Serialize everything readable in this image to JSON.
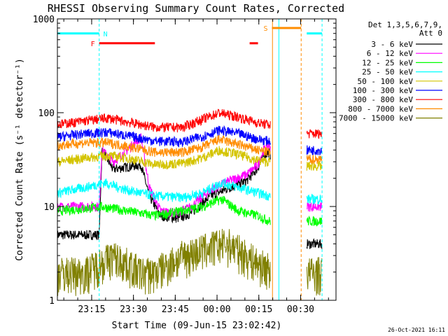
{
  "chart_data": {
    "type": "line",
    "title": "RHESSI Observing Summary Count Rates, Corrected",
    "xlabel": "Start Time (09-Jun-15 23:02:42)",
    "ylabel": "Corrected Count Rate (s⁻¹ detector⁻¹)",
    "yscale": "log",
    "ylim": [
      1,
      1000
    ],
    "xlim_minutes": [
      0,
      100
    ],
    "x_ticks": [
      {
        "t": 12.3,
        "label": "23:15"
      },
      {
        "t": 27.3,
        "label": "23:30"
      },
      {
        "t": 42.3,
        "label": "23:45"
      },
      {
        "t": 57.3,
        "label": "00:00"
      },
      {
        "t": 72.3,
        "label": "00:15"
      },
      {
        "t": 87.3,
        "label": "00:30"
      }
    ],
    "y_ticks": [
      {
        "v": 1,
        "label": "1"
      },
      {
        "v": 10,
        "label": "10"
      },
      {
        "v": 100,
        "label": "100"
      },
      {
        "v": 1000,
        "label": "1000"
      }
    ],
    "legend_header": [
      "Det 1,3,5,6,7,9,",
      "Att 0"
    ],
    "data_gaps_minutes": [
      [
        76.5,
        89.5
      ]
    ],
    "series": [
      {
        "name": "3 - 6 keV",
        "color": "#000000",
        "points": [
          [
            0,
            5
          ],
          [
            15,
            5
          ],
          [
            16,
            40
          ],
          [
            20,
            25
          ],
          [
            30,
            28
          ],
          [
            33,
            13
          ],
          [
            37,
            8
          ],
          [
            43,
            7.5
          ],
          [
            48,
            8.5
          ],
          [
            55,
            13
          ],
          [
            62,
            16
          ],
          [
            68,
            19
          ],
          [
            72,
            26
          ],
          [
            74,
            35
          ],
          [
            76,
            38
          ],
          [
            89.5,
            4
          ],
          [
            95,
            4
          ]
        ]
      },
      {
        "name": "6 - 12 keV",
        "color": "#ff00ff",
        "points": [
          [
            0,
            10
          ],
          [
            15,
            10
          ],
          [
            16,
            40
          ],
          [
            20,
            30
          ],
          [
            25,
            40
          ],
          [
            30,
            55
          ],
          [
            33,
            16
          ],
          [
            37,
            9
          ],
          [
            43,
            8.5
          ],
          [
            48,
            10
          ],
          [
            55,
            15
          ],
          [
            62,
            19
          ],
          [
            68,
            22
          ],
          [
            72,
            28
          ],
          [
            74,
            40
          ],
          [
            76,
            45
          ],
          [
            89.5,
            10
          ],
          [
            95,
            10
          ]
        ]
      },
      {
        "name": "12 - 25 keV",
        "color": "#00ff00",
        "points": [
          [
            0,
            9
          ],
          [
            10,
            9.5
          ],
          [
            16,
            10
          ],
          [
            25,
            9
          ],
          [
            35,
            8
          ],
          [
            45,
            9
          ],
          [
            52,
            10
          ],
          [
            59,
            12
          ],
          [
            65,
            9
          ],
          [
            72,
            8
          ],
          [
            76,
            7
          ],
          [
            89.5,
            7
          ],
          [
            95,
            7
          ]
        ]
      },
      {
        "name": "25 - 50 keV",
        "color": "#00ffff",
        "points": [
          [
            0,
            14
          ],
          [
            10,
            16
          ],
          [
            17,
            18
          ],
          [
            25,
            15
          ],
          [
            35,
            13
          ],
          [
            45,
            12.5
          ],
          [
            52,
            14
          ],
          [
            59,
            18
          ],
          [
            65,
            16
          ],
          [
            72,
            14
          ],
          [
            76,
            13
          ],
          [
            89.5,
            12
          ],
          [
            95,
            12
          ]
        ]
      },
      {
        "name": "50 - 100 keV",
        "color": "#d4c400",
        "points": [
          [
            0,
            30
          ],
          [
            10,
            33
          ],
          [
            18,
            35
          ],
          [
            25,
            33
          ],
          [
            35,
            28
          ],
          [
            45,
            29
          ],
          [
            52,
            33
          ],
          [
            58,
            40
          ],
          [
            65,
            36
          ],
          [
            72,
            31
          ],
          [
            76,
            30
          ],
          [
            89.5,
            27
          ],
          [
            95,
            27
          ]
        ]
      },
      {
        "name": "100 - 300 keV",
        "color": "#0000ff",
        "points": [
          [
            0,
            55
          ],
          [
            10,
            60
          ],
          [
            18,
            62
          ],
          [
            25,
            57
          ],
          [
            35,
            50
          ],
          [
            45,
            49
          ],
          [
            52,
            56
          ],
          [
            58,
            65
          ],
          [
            65,
            60
          ],
          [
            72,
            52
          ],
          [
            76,
            50
          ],
          [
            89.5,
            40
          ],
          [
            95,
            40
          ]
        ]
      },
      {
        "name": "300 - 800 keV",
        "color": "#ff0000",
        "points": [
          [
            0,
            75
          ],
          [
            10,
            82
          ],
          [
            18,
            88
          ],
          [
            25,
            80
          ],
          [
            35,
            70
          ],
          [
            45,
            70
          ],
          [
            52,
            85
          ],
          [
            58,
            100
          ],
          [
            65,
            90
          ],
          [
            72,
            78
          ],
          [
            76,
            75
          ],
          [
            89.5,
            60
          ],
          [
            95,
            60
          ]
        ]
      },
      {
        "name": "800 - 7000 keV",
        "color": "#ff8c00",
        "points": [
          [
            0,
            45
          ],
          [
            10,
            48
          ],
          [
            18,
            48
          ],
          [
            25,
            44
          ],
          [
            35,
            38
          ],
          [
            45,
            38
          ],
          [
            52,
            43
          ],
          [
            58,
            52
          ],
          [
            65,
            46
          ],
          [
            72,
            40
          ],
          [
            76,
            38
          ],
          [
            89.5,
            32
          ],
          [
            95,
            32
          ]
        ]
      },
      {
        "name": "7000 - 15000 keV",
        "color": "#808000",
        "points": [
          [
            0,
            2
          ],
          [
            10,
            2
          ],
          [
            15,
            2.5
          ],
          [
            20,
            3
          ],
          [
            25,
            2.5
          ],
          [
            30,
            2
          ],
          [
            35,
            2
          ],
          [
            40,
            2.5
          ],
          [
            45,
            3
          ],
          [
            52,
            3.5
          ],
          [
            58,
            4
          ],
          [
            62,
            4
          ],
          [
            68,
            3
          ],
          [
            72,
            2.5
          ],
          [
            76,
            2.2
          ],
          [
            89.5,
            2
          ],
          [
            95,
            2
          ]
        ]
      }
    ],
    "flags": [
      {
        "label": "N",
        "color": "#00ffff",
        "y": 700,
        "segments": [
          [
            0,
            15
          ],
          [
            89.5,
            95
          ]
        ]
      },
      {
        "label": "F",
        "color": "#ff0000",
        "y": 550,
        "segments": [
          [
            15,
            35
          ],
          [
            69,
            72
          ]
        ]
      },
      {
        "label": "S",
        "color": "#ff8c00",
        "y": 800,
        "segments": [
          [
            77,
            87.5
          ]
        ]
      }
    ],
    "markers": [
      {
        "t": 15,
        "color": "#00ffff",
        "style": "dashed"
      },
      {
        "t": 77.2,
        "color": "#ff8c00",
        "style": "solid"
      },
      {
        "t": 79.5,
        "color": "#00ffff",
        "style": "solid"
      },
      {
        "t": 87.5,
        "color": "#ff8c00",
        "style": "dashed"
      },
      {
        "t": 95,
        "color": "#00ffff",
        "style": "dashed"
      }
    ],
    "timestamp": "26-Oct-2021 16:11"
  }
}
